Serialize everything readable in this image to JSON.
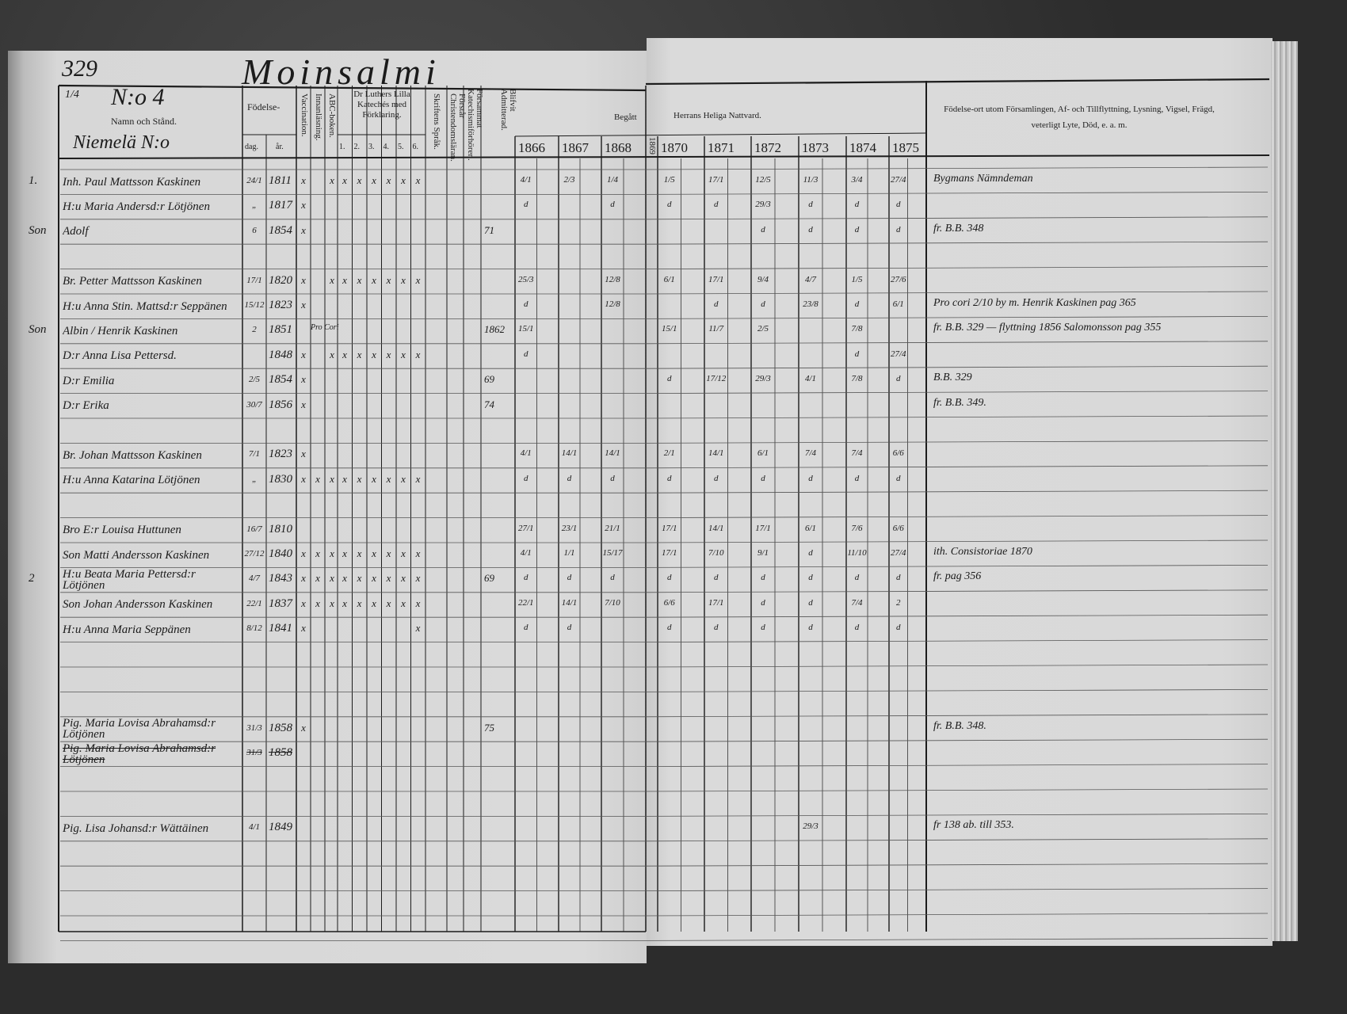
{
  "page_number": "329",
  "parish": "Moinsalmi",
  "left_header": {
    "fraction": "1/4",
    "household_no": "N:o 4",
    "name_col": "Namn och Stånd.",
    "village": "Niemelä N:o",
    "birth": "Födelse-",
    "day": "dag.",
    "year": "år.",
    "vaccination": "Vaccination.",
    "reading": "Innanläsning.",
    "abc": "ABC-boken.",
    "catechism": "Dr Luthers Lilla Katechés med Förklaring.",
    "cat_cols": [
      "1.",
      "2.",
      "3.",
      "4.",
      "5.",
      "6."
    ],
    "scripture": "Skriftens Språk.",
    "christian_doctrine": "Förstår Christendomsläran.",
    "confirmation_class": "Försammat Katechismiförhören.",
    "admitted": "Blifvit Admitterad.",
    "began": "Begått"
  },
  "right_header": {
    "communion": "Herrans Heliga Nattvard.",
    "notes_col": "Födelse-ort utom Församlingen, Af- och Tillflyttning, Lysning, Vigsel, Frägd, veterligt Lyte, Död, e. a. m."
  },
  "years": [
    "1866",
    "1867",
    "1868",
    "1869",
    "1870",
    "1871",
    "1872",
    "1873",
    "1874",
    "1875"
  ],
  "rows": [
    {
      "prefix": "1.",
      "name": "Inh. Paul Mattsson Kaskinen",
      "day": "24/1",
      "year": "1811",
      "marks": [
        "x",
        "",
        "x",
        "x",
        "x",
        "x",
        "x",
        "x",
        "x"
      ],
      "admit": "",
      "comm": [
        "4/1",
        "2/3",
        "1/4",
        "",
        "1/5",
        "17/1",
        "12/5",
        "11/3",
        "3/4",
        "27/4"
      ],
      "note": "Bygmans Nämndeman"
    },
    {
      "prefix": "",
      "name": "H:u Maria Andersd:r Lötjönen",
      "day": "„",
      "year": "1817",
      "marks": [
        "x",
        "",
        "",
        "",
        "",
        "",
        "",
        "",
        ""
      ],
      "admit": "",
      "comm": [
        "d",
        "",
        "d",
        "",
        "d",
        "d",
        "29/3",
        "d",
        "d",
        "d"
      ],
      "note": ""
    },
    {
      "prefix": "Son",
      "name": "Adolf",
      "day": "6",
      "year": "1854",
      "marks": [
        "x",
        "",
        "",
        "",
        "",
        "",
        "",
        "",
        ""
      ],
      "admit": "71",
      "comm": [
        "",
        "",
        "",
        "",
        "",
        "",
        "d",
        "d",
        "d",
        "d"
      ],
      "note": "fr. B.B. 348"
    },
    {},
    {
      "prefix": "",
      "name": "Br. Petter Mattsson Kaskinen",
      "day": "17/1",
      "year": "1820",
      "marks": [
        "x",
        "",
        "x",
        "x",
        "x",
        "x",
        "x",
        "x",
        "x"
      ],
      "admit": "",
      "comm": [
        "25/3",
        "",
        "12/8",
        "",
        "6/1",
        "17/1",
        "9/4",
        "4/7",
        "1/5",
        "27/6"
      ],
      "note": ""
    },
    {
      "prefix": "",
      "name": "H:u Anna Stin. Mattsd:r Seppänen",
      "day": "15/12",
      "year": "1823",
      "marks": [
        "x",
        "",
        "",
        "",
        "",
        "",
        "",
        "",
        ""
      ],
      "admit": "",
      "comm": [
        "d",
        "",
        "12/8",
        "",
        "",
        "d",
        "d",
        "23/8",
        "d",
        "6/1"
      ],
      "note": "Pro cori 2/10 by m. Henrik Kaskinen pag 365"
    },
    {
      "prefix": "Son",
      "name": "Albin / Henrik Kaskinen",
      "day": "2",
      "year": "1851",
      "marks": [
        "",
        "Pro Cori",
        "",
        "",
        "",
        "",
        "",
        "",
        "",
        ""
      ],
      "admit": "1862",
      "comm": [
        "15/1",
        "",
        "",
        "",
        "15/1",
        "11/7",
        "2/5",
        "",
        "7/8",
        ""
      ],
      "note": "fr. B.B. 329 — flyttning 1856 Salomonsson pag 355"
    },
    {
      "prefix": "",
      "name": "D:r Anna Lisa Pettersd.",
      "day": "",
      "year": "1848",
      "marks": [
        "x",
        "",
        "x",
        "x",
        "x",
        "x",
        "x",
        "x",
        "x"
      ],
      "admit": "",
      "comm": [
        "d",
        "",
        "",
        "",
        "",
        "",
        "",
        "",
        "d",
        "27/4"
      ],
      "note": ""
    },
    {
      "prefix": "",
      "name": "D:r Emilia",
      "day": "2/5",
      "year": "1854",
      "marks": [
        "x",
        "",
        "",
        "",
        "",
        "",
        "",
        "",
        ""
      ],
      "admit": "69",
      "comm": [
        "",
        "",
        "",
        "",
        "d",
        "17/12",
        "29/3",
        "4/1",
        "7/8",
        "d"
      ],
      "note": "B.B. 329"
    },
    {
      "prefix": "",
      "name": "D:r Erika",
      "day": "30/7",
      "year": "1856",
      "marks": [
        "x",
        "",
        "",
        "",
        "",
        "",
        "",
        "",
        ""
      ],
      "admit": "74",
      "comm": [
        "",
        "",
        "",
        "",
        "",
        "",
        "",
        "",
        "",
        ""
      ],
      "note": "fr. B.B. 349."
    },
    {},
    {
      "prefix": "",
      "name": "Br. Johan Mattsson Kaskinen",
      "day": "7/1",
      "year": "1823",
      "marks": [
        "x",
        "",
        "",
        "",
        "",
        "",
        "",
        "",
        ""
      ],
      "admit": "",
      "comm": [
        "4/1",
        "14/1",
        "14/1",
        "",
        "2/1",
        "14/1",
        "6/1",
        "7/4",
        "7/4",
        "6/6"
      ],
      "note": ""
    },
    {
      "prefix": "",
      "name": "H:u Anna Katarina Lötjönen",
      "day": "„",
      "year": "1830",
      "marks": [
        "x",
        "x",
        "x",
        "x",
        "x",
        "x",
        "x",
        "x",
        "x"
      ],
      "admit": "",
      "comm": [
        "d",
        "d",
        "d",
        "",
        "d",
        "d",
        "d",
        "d",
        "d",
        "d"
      ],
      "note": ""
    },
    {},
    {
      "prefix": "",
      "name": "Bro E:r Louisa Huttunen",
      "day": "16/7",
      "year": "1810",
      "marks": [
        "",
        "",
        "",
        "",
        "",
        "",
        "",
        "",
        ""
      ],
      "admit": "",
      "comm": [
        "27/1",
        "23/1",
        "21/1",
        "",
        "17/1",
        "14/1",
        "17/1",
        "6/1",
        "7/6",
        "6/6"
      ],
      "note": ""
    },
    {
      "prefix": "",
      "name": "Son Matti Andersson Kaskinen",
      "day": "27/12",
      "year": "1840",
      "marks": [
        "x",
        "x",
        "x",
        "x",
        "x",
        "x",
        "x",
        "x",
        "x"
      ],
      "admit": "",
      "comm": [
        "4/1",
        "1/1",
        "15/17",
        "",
        "17/1",
        "7/10",
        "9/1",
        "d",
        "11/10",
        "27/4"
      ],
      "note": "ith. Consistoriae 1870"
    },
    {
      "prefix": "2",
      "name": "H:u Beata Maria Pettersd:r Lötjönen",
      "day": "4/7",
      "year": "1843",
      "marks": [
        "x",
        "x",
        "x",
        "x",
        "x",
        "x",
        "x",
        "x",
        "x"
      ],
      "admit": "69",
      "comm": [
        "d",
        "d",
        "d",
        "",
        "d",
        "d",
        "d",
        "d",
        "d",
        "d"
      ],
      "note": "fr. pag 356"
    },
    {
      "prefix": "",
      "name": "Son Johan Andersson Kaskinen",
      "day": "22/1",
      "year": "1837",
      "marks": [
        "x",
        "x",
        "x",
        "x",
        "x",
        "x",
        "x",
        "x",
        "x"
      ],
      "admit": "",
      "comm": [
        "22/1",
        "14/1",
        "7/10",
        "",
        "6/6",
        "17/1",
        "d",
        "d",
        "7/4",
        "2"
      ],
      "note": ""
    },
    {
      "prefix": "",
      "name": "H:u Anna Maria Seppänen",
      "day": "8/12",
      "year": "1841",
      "marks": [
        "x",
        "",
        "",
        "",
        "",
        "",
        "",
        "",
        "x"
      ],
      "admit": "",
      "comm": [
        "d",
        "d",
        "",
        "",
        "d",
        "d",
        "d",
        "d",
        "d",
        "d"
      ],
      "note": ""
    },
    {},
    {},
    {},
    {
      "prefix": "",
      "name": "Pig. Maria Lovisa Abrahamsd:r Lötjönen",
      "day": "31/3",
      "year": "1858",
      "marks": [
        "x",
        "",
        "",
        "",
        "",
        "",
        "",
        "",
        ""
      ],
      "admit": "75",
      "comm": [
        "",
        "",
        "",
        "",
        "",
        "",
        "",
        "",
        "",
        ""
      ],
      "note": "fr. B.B. 348."
    },
    {
      "prefix": "",
      "name": "Pig. Maria Lovisa Abrahamsd:r Lötjönen",
      "day": "31/3",
      "year": "1858",
      "struck": true,
      "marks": [
        "",
        "",
        "",
        "",
        "",
        "",
        "",
        "",
        ""
      ],
      "admit": "",
      "comm": [
        "",
        "",
        "",
        "",
        "",
        "",
        "",
        "",
        "",
        ""
      ],
      "note": ""
    },
    {},
    {},
    {
      "prefix": "",
      "name": "Pig. Lisa Johansd:r Wättäinen",
      "day": "4/1",
      "year": "1849",
      "marks": [
        "",
        "",
        "",
        "",
        "",
        "",
        "",
        "",
        ""
      ],
      "admit": "",
      "comm": [
        "",
        "",
        "",
        "",
        "",
        "",
        "",
        "29/3",
        "",
        ""
      ],
      "note": "fr 138 ab. till 353."
    },
    {},
    {},
    {},
    {}
  ]
}
